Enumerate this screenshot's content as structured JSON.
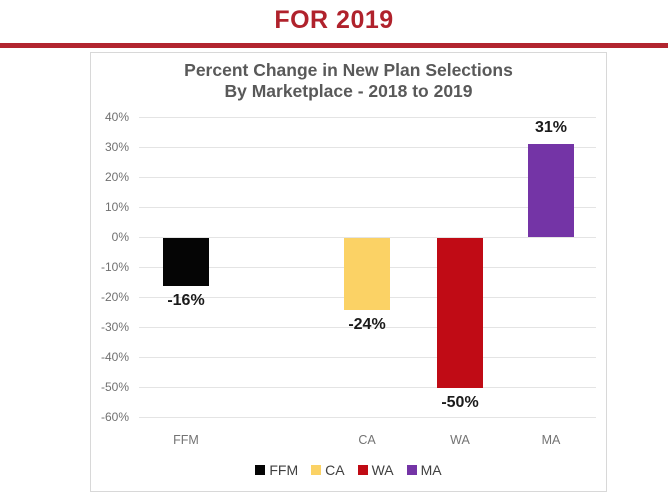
{
  "header": {
    "title": "FOR 2019"
  },
  "chart": {
    "title_line1": "Percent Change in New Plan Selections",
    "title_line2": "By Marketplace - 2018 to 2019"
  },
  "chart_data": {
    "type": "bar",
    "title": "Percent Change in New Plan Selections By Marketplace - 2018 to 2019",
    "categories": [
      "FFM",
      "CA",
      "WA",
      "MA"
    ],
    "values": [
      -16,
      -24,
      -50,
      31
    ],
    "value_labels": [
      "-16%",
      "-24%",
      "-50%",
      "31%"
    ],
    "colors": [
      "#050505",
      "#FBD265",
      "#C00B15",
      "#7434A6"
    ],
    "xlabel": "",
    "ylabel": "",
    "ylim": [
      -60,
      40
    ],
    "ytick_step": 10,
    "ytick_labels": [
      "40%",
      "30%",
      "20%",
      "10%",
      "0%",
      "-10%",
      "-20%",
      "-30%",
      "-40%",
      "-50%",
      "-60%"
    ],
    "grid": true,
    "legend": {
      "position": "bottom",
      "entries": [
        "FFM",
        "CA",
        "WA",
        "MA"
      ]
    }
  },
  "colors": {
    "header_red": "#B0222C",
    "rule_red": "#B2252F",
    "title_gray": "#595959",
    "axis_gray": "#737373",
    "grid_gray": "#E4E4E4",
    "border_gray": "#D8D8D8",
    "data_label_black": "#1A1A1A"
  }
}
